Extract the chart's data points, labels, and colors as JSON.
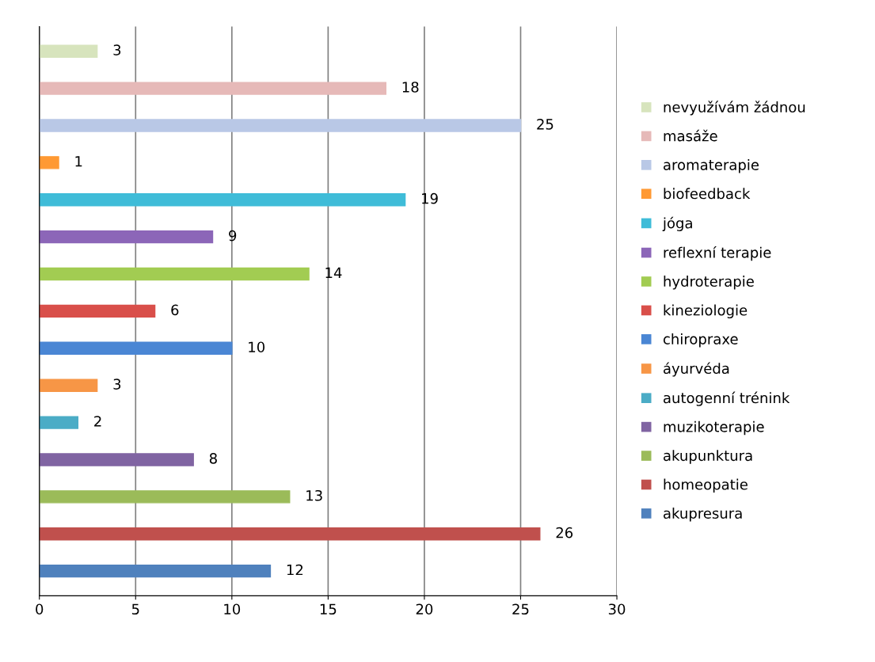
{
  "chart_data": {
    "type": "bar",
    "orientation": "horizontal",
    "categories": [
      null
    ],
    "series": [
      {
        "name": "akupresura",
        "color": "#4f81bd",
        "values": [
          12
        ]
      },
      {
        "name": "homeopatie",
        "color": "#c0504d",
        "values": [
          26
        ]
      },
      {
        "name": "akupunktura",
        "color": "#9bbb59",
        "values": [
          13
        ]
      },
      {
        "name": "muzikoterapie",
        "color": "#8064a2",
        "values": [
          8
        ]
      },
      {
        "name": "autogenní trénink",
        "color": "#4bacc6",
        "values": [
          2
        ]
      },
      {
        "name": "áyurvéda",
        "color": "#f79646",
        "values": [
          3
        ]
      },
      {
        "name": "chiropraxe",
        "color": "#4a86d4",
        "values": [
          10
        ]
      },
      {
        "name": "kineziologie",
        "color": "#d94f4a",
        "values": [
          6
        ]
      },
      {
        "name": "hydroterapie",
        "color": "#a2cc52",
        "values": [
          14
        ]
      },
      {
        "name": "reflexní terapie",
        "color": "#8c66b8",
        "values": [
          9
        ]
      },
      {
        "name": "jóga",
        "color": "#3fbcd8",
        "values": [
          19
        ]
      },
      {
        "name": "biofeedback",
        "color": "#ff9933",
        "values": [
          1
        ]
      },
      {
        "name": "aromaterapie",
        "color": "#b9c8e6",
        "values": [
          25
        ]
      },
      {
        "name": "masáže",
        "color": "#e6b9b8",
        "values": [
          18
        ]
      },
      {
        "name": "nevyužívám žádnou",
        "color": "#d7e4bd",
        "values": [
          3
        ]
      }
    ],
    "xlim": [
      0,
      30
    ],
    "xticks": [
      0,
      5,
      10,
      15,
      20,
      25,
      30
    ],
    "grid": "x",
    "legend": "right",
    "data_labels": true
  }
}
